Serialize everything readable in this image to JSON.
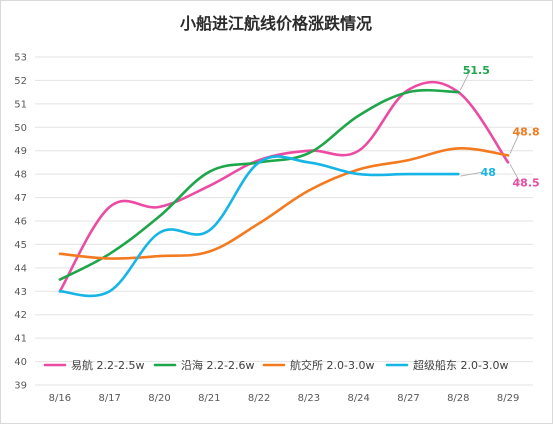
{
  "chart_data": {
    "type": "line",
    "title": "小船进江航线价格涨跌情况",
    "categories": [
      "8/16",
      "8/17",
      "8/20",
      "8/21",
      "8/22",
      "8/23",
      "8/24",
      "8/27",
      "8/28",
      "8/29"
    ],
    "ylim": [
      39,
      53
    ],
    "yticks": [
      39,
      40,
      41,
      42,
      43,
      44,
      45,
      46,
      47,
      48,
      49,
      50,
      51,
      52,
      53
    ],
    "grid": true,
    "legend": "bottom",
    "series": [
      {
        "name": "易航 2.2-2.5w",
        "color": "#ec4ba3",
        "values": [
          43.0,
          46.6,
          46.6,
          47.5,
          48.6,
          49.0,
          49.0,
          51.6,
          51.5,
          48.5
        ],
        "end_label": "48.5"
      },
      {
        "name": "沿海 2.2-2.6w",
        "color": "#1ea64a",
        "values": [
          43.5,
          44.6,
          46.2,
          48.1,
          48.5,
          48.9,
          50.5,
          51.5,
          51.5,
          null
        ],
        "end_label": "51.5"
      },
      {
        "name": "航交所 2.0-3.0w",
        "color": "#f47a20",
        "values": [
          44.6,
          44.4,
          44.5,
          44.7,
          45.9,
          47.3,
          48.2,
          48.6,
          49.1,
          48.8
        ],
        "end_label": "48.8"
      },
      {
        "name": "超级船东 2.0-3.0w",
        "color": "#16b5e6",
        "values": [
          43.0,
          43.0,
          45.5,
          45.6,
          48.5,
          48.5,
          48.0,
          48.0,
          48.0,
          null
        ],
        "end_label": "48"
      }
    ]
  }
}
